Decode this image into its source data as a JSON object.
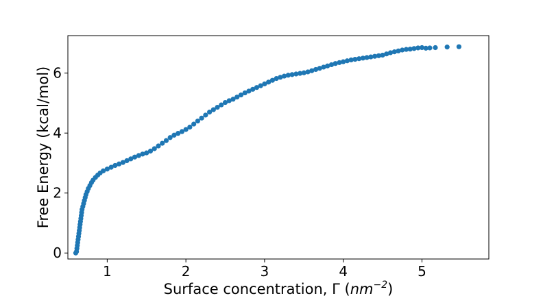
{
  "chart_data": {
    "type": "scatter",
    "xlabel_plain": "Surface concentration, Γ (",
    "xlabel_unit": "nm",
    "xlabel_exp": "−2",
    "xlabel_close": ")",
    "ylabel": "Free Energy (kcal/mol)",
    "xlim": [
      0.5,
      5.85
    ],
    "ylim": [
      -0.2,
      7.25
    ],
    "xticks": [
      1,
      2,
      3,
      4,
      5
    ],
    "yticks": [
      0,
      2,
      4,
      6
    ],
    "xtick_labels": [
      "1",
      "2",
      "3",
      "4",
      "5"
    ],
    "ytick_labels": [
      "0",
      "2",
      "4",
      "6"
    ],
    "grid": false,
    "marker_color": "#1f77b4",
    "points": [
      [
        0.6,
        0.0
      ],
      [
        0.61,
        0.05
      ],
      [
        0.615,
        0.15
      ],
      [
        0.62,
        0.25
      ],
      [
        0.625,
        0.35
      ],
      [
        0.63,
        0.45
      ],
      [
        0.635,
        0.55
      ],
      [
        0.64,
        0.65
      ],
      [
        0.645,
        0.75
      ],
      [
        0.65,
        0.85
      ],
      [
        0.655,
        0.95
      ],
      [
        0.66,
        1.05
      ],
      [
        0.665,
        1.15
      ],
      [
        0.67,
        1.25
      ],
      [
        0.675,
        1.35
      ],
      [
        0.68,
        1.45
      ],
      [
        0.69,
        1.55
      ],
      [
        0.7,
        1.65
      ],
      [
        0.71,
        1.75
      ],
      [
        0.72,
        1.85
      ],
      [
        0.73,
        1.95
      ],
      [
        0.745,
        2.05
      ],
      [
        0.76,
        2.15
      ],
      [
        0.78,
        2.25
      ],
      [
        0.8,
        2.35
      ],
      [
        0.82,
        2.43
      ],
      [
        0.85,
        2.52
      ],
      [
        0.88,
        2.6
      ],
      [
        0.91,
        2.67
      ],
      [
        0.95,
        2.74
      ],
      [
        1.0,
        2.8
      ],
      [
        1.05,
        2.86
      ],
      [
        1.1,
        2.92
      ],
      [
        1.15,
        2.97
      ],
      [
        1.2,
        3.02
      ],
      [
        1.25,
        3.08
      ],
      [
        1.3,
        3.14
      ],
      [
        1.35,
        3.2
      ],
      [
        1.4,
        3.25
      ],
      [
        1.45,
        3.3
      ],
      [
        1.5,
        3.34
      ],
      [
        1.55,
        3.4
      ],
      [
        1.6,
        3.48
      ],
      [
        1.65,
        3.57
      ],
      [
        1.7,
        3.66
      ],
      [
        1.75,
        3.75
      ],
      [
        1.8,
        3.85
      ],
      [
        1.85,
        3.93
      ],
      [
        1.9,
        3.99
      ],
      [
        1.95,
        4.05
      ],
      [
        2.0,
        4.12
      ],
      [
        2.05,
        4.2
      ],
      [
        2.1,
        4.3
      ],
      [
        2.15,
        4.4
      ],
      [
        2.2,
        4.5
      ],
      [
        2.25,
        4.6
      ],
      [
        2.3,
        4.7
      ],
      [
        2.35,
        4.78
      ],
      [
        2.4,
        4.86
      ],
      [
        2.45,
        4.94
      ],
      [
        2.5,
        5.02
      ],
      [
        2.55,
        5.08
      ],
      [
        2.6,
        5.13
      ],
      [
        2.65,
        5.2
      ],
      [
        2.7,
        5.27
      ],
      [
        2.75,
        5.34
      ],
      [
        2.8,
        5.4
      ],
      [
        2.85,
        5.46
      ],
      [
        2.9,
        5.52
      ],
      [
        2.95,
        5.58
      ],
      [
        3.0,
        5.64
      ],
      [
        3.05,
        5.7
      ],
      [
        3.1,
        5.76
      ],
      [
        3.15,
        5.82
      ],
      [
        3.2,
        5.86
      ],
      [
        3.25,
        5.9
      ],
      [
        3.3,
        5.93
      ],
      [
        3.35,
        5.95
      ],
      [
        3.4,
        5.97
      ],
      [
        3.45,
        5.99
      ],
      [
        3.5,
        6.01
      ],
      [
        3.55,
        6.04
      ],
      [
        3.6,
        6.08
      ],
      [
        3.65,
        6.12
      ],
      [
        3.7,
        6.16
      ],
      [
        3.75,
        6.2
      ],
      [
        3.8,
        6.24
      ],
      [
        3.85,
        6.28
      ],
      [
        3.9,
        6.32
      ],
      [
        3.95,
        6.35
      ],
      [
        4.0,
        6.38
      ],
      [
        4.05,
        6.41
      ],
      [
        4.1,
        6.44
      ],
      [
        4.15,
        6.46
      ],
      [
        4.2,
        6.48
      ],
      [
        4.25,
        6.5
      ],
      [
        4.3,
        6.52
      ],
      [
        4.35,
        6.54
      ],
      [
        4.4,
        6.56
      ],
      [
        4.45,
        6.58
      ],
      [
        4.5,
        6.6
      ],
      [
        4.55,
        6.64
      ],
      [
        4.6,
        6.68
      ],
      [
        4.65,
        6.71
      ],
      [
        4.7,
        6.74
      ],
      [
        4.75,
        6.77
      ],
      [
        4.8,
        6.79
      ],
      [
        4.85,
        6.8
      ],
      [
        4.9,
        6.82
      ],
      [
        4.95,
        6.84
      ],
      [
        5.0,
        6.85
      ],
      [
        5.05,
        6.83
      ],
      [
        5.1,
        6.84
      ],
      [
        5.17,
        6.85
      ],
      [
        5.32,
        6.87
      ],
      [
        5.47,
        6.88
      ]
    ]
  }
}
